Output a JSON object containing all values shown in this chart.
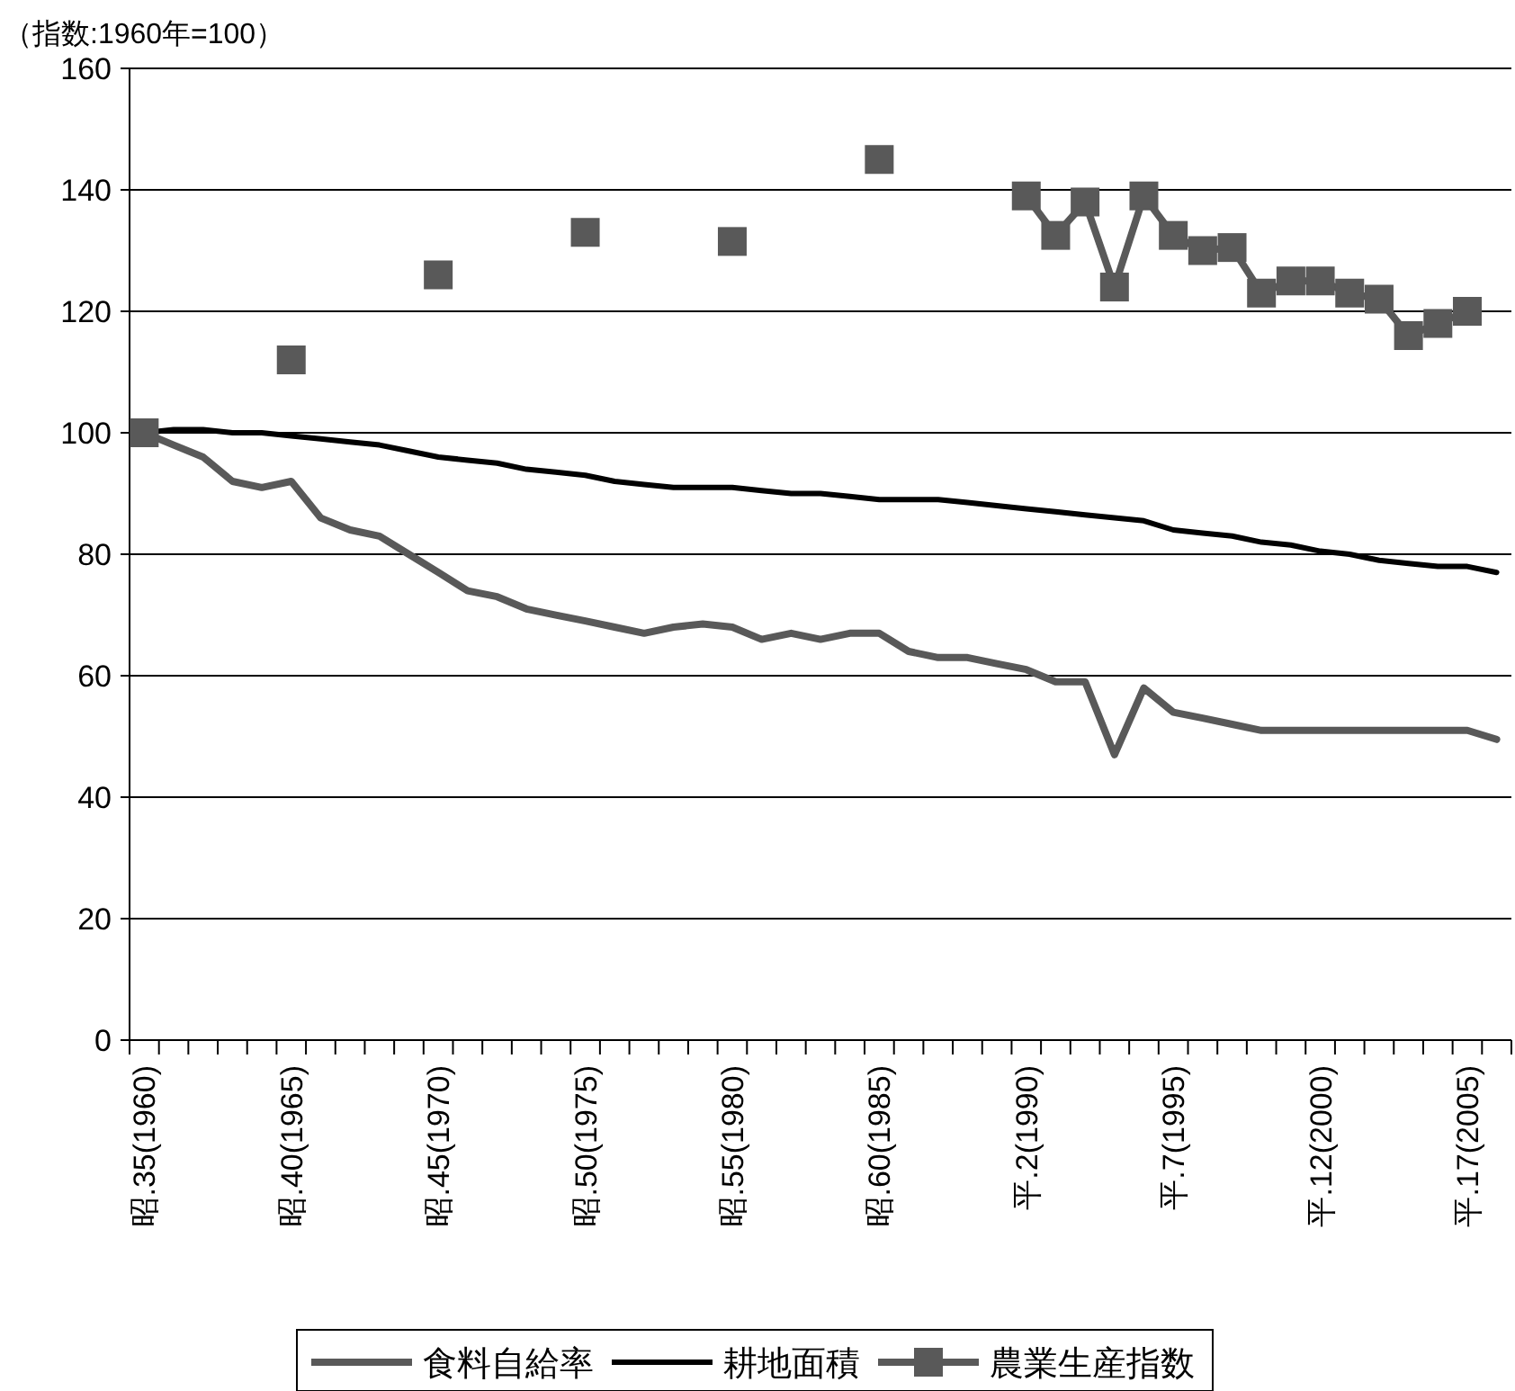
{
  "chart_data": {
    "type": "line",
    "ylabel": "（指数:1960年=100）",
    "categories": [
      "昭.35(1960)",
      null,
      null,
      null,
      null,
      "昭.40(1965)",
      null,
      null,
      null,
      null,
      "昭.45(1970)",
      null,
      null,
      null,
      null,
      "昭.50(1975)",
      null,
      null,
      null,
      null,
      "昭.55(1980)",
      null,
      null,
      null,
      null,
      "昭.60(1985)",
      null,
      null,
      null,
      null,
      "平.2(1990)",
      null,
      null,
      null,
      null,
      "平.7(1995)",
      null,
      null,
      null,
      null,
      "平.12(2000)",
      null,
      null,
      null,
      null,
      "平.17(2005)",
      null
    ],
    "series": [
      {
        "name": "食料自給率",
        "color": "#595959",
        "marker": "none",
        "values": [
          100,
          98,
          96,
          92,
          91,
          92,
          86,
          84,
          83,
          80,
          77,
          74,
          73,
          71,
          70,
          69,
          68,
          67,
          68,
          68.5,
          68,
          66,
          67,
          66,
          67,
          67,
          64,
          63,
          63,
          62,
          61,
          59,
          59,
          47,
          58,
          54,
          53,
          52,
          51,
          51,
          51,
          51,
          51,
          51,
          51,
          51,
          49.5
        ]
      },
      {
        "name": "耕地面積",
        "color": "#000000",
        "marker": "none",
        "values": [
          100,
          100.5,
          100.5,
          100,
          100,
          99.5,
          99,
          98.5,
          98,
          97,
          96,
          95.5,
          95,
          94,
          93.5,
          93,
          92,
          91.5,
          91,
          91,
          91,
          90.5,
          90,
          90,
          89.5,
          89,
          89,
          89,
          88.5,
          88,
          87.5,
          87,
          86.5,
          86,
          85.5,
          84,
          83.5,
          83,
          82,
          81.5,
          80.5,
          80,
          79,
          78.5,
          78,
          78,
          77
        ]
      },
      {
        "name": "農業生産指数",
        "color": "#595959",
        "marker": "square",
        "values": [
          100,
          null,
          null,
          null,
          null,
          112,
          null,
          null,
          null,
          null,
          126,
          null,
          null,
          null,
          null,
          133,
          null,
          null,
          null,
          null,
          131.5,
          null,
          null,
          null,
          null,
          145,
          null,
          null,
          null,
          null,
          139,
          132.5,
          138,
          124,
          139,
          132.5,
          130,
          130.5,
          123,
          125,
          125,
          123,
          122,
          116,
          118,
          120,
          null
        ]
      }
    ],
    "ylim": [
      0,
      160
    ],
    "yticks": [
      0,
      20,
      40,
      60,
      80,
      100,
      120,
      140,
      160
    ],
    "grid": "y",
    "legend": "bottom"
  }
}
